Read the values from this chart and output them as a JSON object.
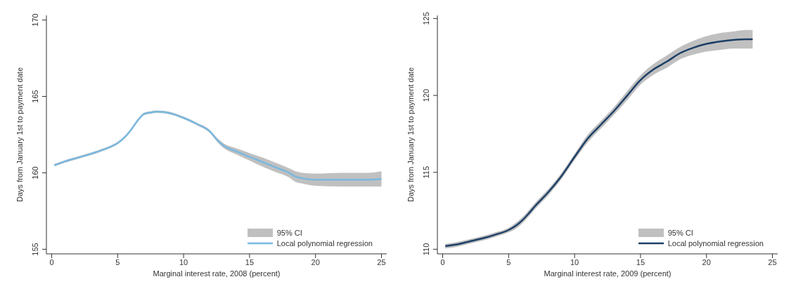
{
  "chart_data": [
    {
      "type": "line",
      "xlabel": "Marginal interest rate, 2008 (percent)",
      "ylabel": "Days from January 1st to payment date",
      "xlim": [
        -0.4,
        25.4
      ],
      "xticks": [
        0,
        5,
        10,
        15,
        20,
        25
      ],
      "ylim": [
        154.7,
        170.3
      ],
      "yticks": [
        155,
        160,
        165,
        170
      ],
      "legend": "bottom right",
      "annotations": [
        "95% CI"
      ],
      "x": [
        0.2,
        1,
        2,
        3,
        4,
        5,
        5.5,
        6,
        6.5,
        7,
        7.5,
        8,
        9,
        10,
        11,
        12,
        12.5,
        13,
        14,
        15,
        16,
        17,
        18,
        18.5,
        19,
        20,
        22,
        24,
        25
      ],
      "series": [
        {
          "name": "Local polynomial regression",
          "color": "#7ab8e0",
          "values": [
            160.5,
            160.75,
            161.0,
            161.25,
            161.55,
            161.95,
            162.3,
            162.8,
            163.4,
            163.85,
            163.95,
            164.0,
            163.9,
            163.6,
            163.2,
            162.7,
            162.2,
            161.8,
            161.4,
            161.05,
            160.7,
            160.35,
            160.0,
            159.75,
            159.65,
            159.55,
            159.55,
            159.55,
            159.6
          ],
          "lower": [
            160.42,
            160.67,
            160.92,
            161.17,
            161.47,
            161.87,
            162.22,
            162.72,
            163.32,
            163.77,
            163.87,
            163.92,
            163.82,
            163.52,
            163.12,
            162.6,
            162.08,
            161.65,
            161.2,
            160.8,
            160.4,
            160.05,
            159.7,
            159.4,
            159.3,
            159.15,
            159.1,
            159.1,
            159.1
          ],
          "upper": [
            160.58,
            160.83,
            161.08,
            161.33,
            161.63,
            162.03,
            162.38,
            162.88,
            163.48,
            163.93,
            164.03,
            164.08,
            163.98,
            163.68,
            163.28,
            162.8,
            162.32,
            161.95,
            161.6,
            161.3,
            161.0,
            160.65,
            160.3,
            160.1,
            160.0,
            159.95,
            160.0,
            160.0,
            160.1
          ]
        }
      ]
    },
    {
      "type": "line",
      "xlabel": "Marginal interest rate, 2009 (percent)",
      "ylabel": "Days from January 1st to payment date",
      "xlim": [
        -0.4,
        25.4
      ],
      "xticks": [
        0,
        5,
        10,
        15,
        20,
        25
      ],
      "ylim": [
        109.7,
        125.2
      ],
      "yticks": [
        110,
        115,
        120,
        125
      ],
      "legend": "bottom right",
      "annotations": [
        "95% CI"
      ],
      "x": [
        0.2,
        1,
        2,
        3,
        4,
        5,
        5.5,
        6,
        6.5,
        7,
        8,
        9,
        10,
        11,
        12,
        13,
        14,
        15,
        16,
        17,
        18,
        19,
        20,
        21,
        22,
        23,
        23.5
      ],
      "series": [
        {
          "name": "Local polynomial regression",
          "color": "#1c3f66",
          "values": [
            110.2,
            110.3,
            110.5,
            110.7,
            110.95,
            111.25,
            111.5,
            111.85,
            112.3,
            112.8,
            113.7,
            114.75,
            116.0,
            117.2,
            118.1,
            119.0,
            120.0,
            121.0,
            121.7,
            122.2,
            122.75,
            123.1,
            123.35,
            123.5,
            123.6,
            123.65,
            123.65
          ],
          "lower": [
            110.05,
            110.15,
            110.35,
            110.55,
            110.8,
            111.1,
            111.3,
            111.65,
            112.1,
            112.6,
            113.5,
            114.55,
            115.8,
            116.95,
            117.85,
            118.75,
            119.7,
            120.7,
            121.35,
            121.8,
            122.35,
            122.65,
            122.85,
            122.95,
            123.05,
            123.05,
            123.05
          ],
          "upper": [
            110.35,
            110.45,
            110.65,
            110.85,
            111.1,
            111.4,
            111.7,
            112.05,
            112.5,
            113.0,
            113.9,
            114.95,
            116.2,
            117.45,
            118.35,
            119.25,
            120.3,
            121.3,
            122.05,
            122.6,
            123.15,
            123.55,
            123.85,
            124.05,
            124.15,
            124.25,
            124.25
          ]
        }
      ]
    }
  ]
}
